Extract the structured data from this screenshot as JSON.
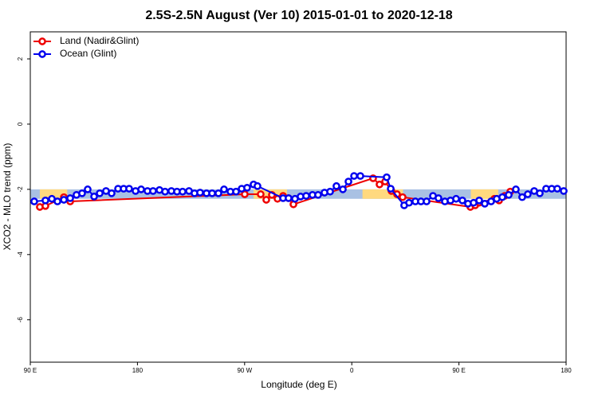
{
  "chart_data": {
    "type": "line",
    "title": "2.5S-2.5N August (Ver 10)   2015-01-01 to 2020-12-18",
    "x_label": "Longitude (deg E)",
    "y_label": "XCO2 - MLO trend (ppm)",
    "xlim": [
      90,
      540
    ],
    "ylim": [
      -7.3,
      2.83
    ],
    "xticks": [
      {
        "value": 90,
        "label": "90 E"
      },
      180,
      {
        "value": 270,
        "label": "90 W"
      },
      {
        "value": 360,
        "label": "0"
      },
      {
        "value": 450,
        "label": "90 E"
      },
      {
        "value": 540,
        "label": "180"
      }
    ],
    "yticks": [
      -6,
      -4,
      -2,
      0,
      2
    ],
    "band": [
      -2.29,
      -2.0
    ],
    "band_color": "#a9c1e3",
    "land_spans": [
      [
        98,
        121
      ],
      [
        277.5,
        305.6
      ],
      [
        369,
        403
      ],
      [
        460,
        483
      ]
    ],
    "land_span_color": "#ffd97f",
    "legend": "top-left",
    "series": [
      {
        "name": "Land (Nadir&Glint)",
        "color": "#ee0000",
        "x": [
          98.0,
          102.7,
          118.2,
          123.5,
          270.1,
          283.5,
          288.2,
          292.9,
          297.6,
          302.3,
          306.9,
          311.0,
          377.9,
          383.3,
          388.0,
          393.3,
          398.0,
          402.7,
          459.6,
          463.6,
          467.0,
          479.7,
          483.7,
          488.4,
          493.1
        ],
        "values": [
          -2.54,
          -2.51,
          -2.24,
          -2.37,
          -2.15,
          -2.15,
          -2.32,
          -2.17,
          -2.29,
          -2.2,
          -2.27,
          -2.46,
          -1.66,
          -1.85,
          -1.76,
          -2.05,
          -2.15,
          -2.24,
          -2.54,
          -2.49,
          -2.41,
          -2.29,
          -2.34,
          -2.2,
          -2.07
        ]
      },
      {
        "name": "Ocean (Glint)",
        "color": "#0000ee",
        "x": [
          93.3,
          102.7,
          108.1,
          112.8,
          118.2,
          123.5,
          128.8,
          133.5,
          138.2,
          143.6,
          148.3,
          153.6,
          158.3,
          163.7,
          168.4,
          173.0,
          178.4,
          183.1,
          188.4,
          193.1,
          198.5,
          203.2,
          208.5,
          213.2,
          217.9,
          223.3,
          227.9,
          232.6,
          238.0,
          242.7,
          248.0,
          252.7,
          258.1,
          262.8,
          267.5,
          272.1,
          277.5,
          280.8,
          302.3,
          306.9,
          312.3,
          317.0,
          321.7,
          327.0,
          331.7,
          337.1,
          341.8,
          347.1,
          352.5,
          357.2,
          361.9,
          367.2,
          389.3,
          392.7,
          404.0,
          408.1,
          413.4,
          418.1,
          422.8,
          428.2,
          432.8,
          438.2,
          442.9,
          447.6,
          452.9,
          457.6,
          462.3,
          467.0,
          471.7,
          477.0,
          481.7,
          486.4,
          491.8,
          497.8,
          503.1,
          507.8,
          513.2,
          517.9,
          523.2,
          527.9,
          532.6,
          538.0
        ],
        "values": [
          -2.37,
          -2.34,
          -2.29,
          -2.37,
          -2.32,
          -2.27,
          -2.17,
          -2.12,
          -2.0,
          -2.22,
          -2.12,
          -2.05,
          -2.12,
          -1.98,
          -1.98,
          -1.98,
          -2.05,
          -2.0,
          -2.05,
          -2.05,
          -2.02,
          -2.07,
          -2.05,
          -2.07,
          -2.07,
          -2.05,
          -2.12,
          -2.1,
          -2.12,
          -2.12,
          -2.12,
          -2.0,
          -2.07,
          -2.07,
          -1.98,
          -1.95,
          -1.85,
          -1.9,
          -2.27,
          -2.27,
          -2.29,
          -2.22,
          -2.2,
          -2.17,
          -2.17,
          -2.1,
          -2.07,
          -1.9,
          -2.0,
          -1.76,
          -1.59,
          -1.59,
          -1.63,
          -1.98,
          -2.49,
          -2.41,
          -2.37,
          -2.37,
          -2.37,
          -2.2,
          -2.27,
          -2.37,
          -2.34,
          -2.29,
          -2.34,
          -2.44,
          -2.41,
          -2.34,
          -2.44,
          -2.37,
          -2.29,
          -2.24,
          -2.17,
          -2.0,
          -2.24,
          -2.15,
          -2.05,
          -2.12,
          -1.98,
          -1.98,
          -1.98,
          -2.05
        ]
      }
    ]
  }
}
